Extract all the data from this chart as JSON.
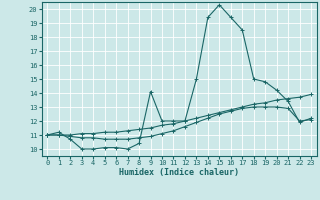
{
  "xlabel": "Humidex (Indice chaleur)",
  "ylabel": "",
  "bg_color": "#cce8e8",
  "grid_color": "#ffffff",
  "line_color": "#1a6666",
  "xlim": [
    -0.5,
    23.5
  ],
  "ylim": [
    9.5,
    20.5
  ],
  "xticks": [
    0,
    1,
    2,
    3,
    4,
    5,
    6,
    7,
    8,
    9,
    10,
    11,
    12,
    13,
    14,
    15,
    16,
    17,
    18,
    19,
    20,
    21,
    22,
    23
  ],
  "yticks": [
    10,
    11,
    12,
    13,
    14,
    15,
    16,
    17,
    18,
    19,
    20
  ],
  "series": [
    [
      11.0,
      11.2,
      10.7,
      10.0,
      10.0,
      10.1,
      10.1,
      10.0,
      10.4,
      14.1,
      12.0,
      12.0,
      12.0,
      15.0,
      19.4,
      20.3,
      19.4,
      18.5,
      15.0,
      14.8,
      14.2,
      13.4,
      11.9,
      12.2
    ],
    [
      11.0,
      11.0,
      11.0,
      11.1,
      11.1,
      11.2,
      11.2,
      11.3,
      11.4,
      11.5,
      11.7,
      11.8,
      12.0,
      12.2,
      12.4,
      12.6,
      12.8,
      13.0,
      13.2,
      13.3,
      13.5,
      13.6,
      13.7,
      13.9
    ],
    [
      11.0,
      11.0,
      10.9,
      10.8,
      10.8,
      10.7,
      10.7,
      10.7,
      10.8,
      10.9,
      11.1,
      11.3,
      11.6,
      11.9,
      12.2,
      12.5,
      12.7,
      12.9,
      13.0,
      13.0,
      13.0,
      12.9,
      12.0,
      12.1
    ]
  ],
  "tick_fontsize": 5.0,
  "xlabel_fontsize": 6.0,
  "marker_size": 2.5,
  "linewidth": 0.8
}
